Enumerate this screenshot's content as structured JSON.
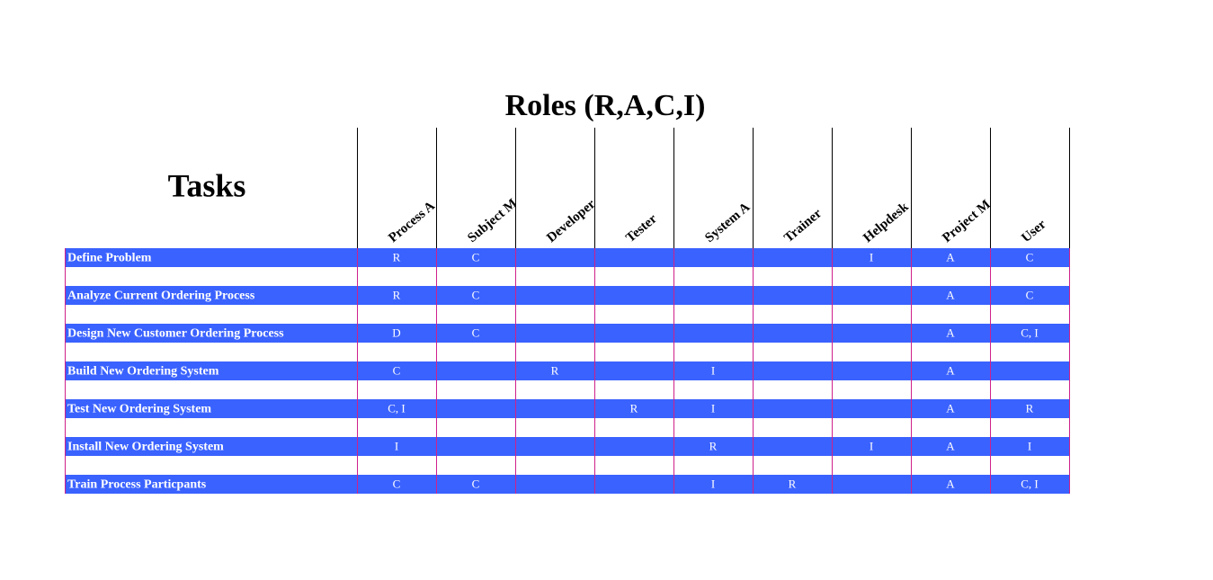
{
  "title": "Roles (R,A,C,I)",
  "tasks_header": "Tasks",
  "roles": [
    "Process A",
    "Subject M",
    "Developer",
    "Tester",
    "System A",
    "Trainer",
    "Helpdesk",
    "Project M",
    "User"
  ],
  "rows": [
    {
      "task": "Define Problem",
      "cells": [
        "R",
        "C",
        null,
        null,
        null,
        null,
        "I",
        "A",
        "C"
      ]
    },
    {
      "task": "Analyze Current Ordering Process",
      "cells": [
        "R",
        "C",
        null,
        null,
        null,
        null,
        null,
        "A",
        "C"
      ]
    },
    {
      "task": "Design New Customer Ordering Process",
      "cells": [
        "D",
        "C",
        null,
        null,
        null,
        null,
        null,
        "A",
        "C, I"
      ]
    },
    {
      "task": "Build New Ordering System",
      "cells": [
        "C",
        null,
        "R",
        null,
        "I",
        null,
        null,
        "A",
        null
      ]
    },
    {
      "task": "Test New Ordering System",
      "cells": [
        "C, I",
        null,
        null,
        "R",
        "I",
        null,
        null,
        "A",
        "R"
      ]
    },
    {
      "task": "Install New Ordering System",
      "cells": [
        "I",
        null,
        null,
        null,
        "R",
        null,
        "I",
        "A",
        "I"
      ]
    },
    {
      "task": "Train Process Particpants",
      "cells": [
        "C",
        "C",
        null,
        null,
        "I",
        "R",
        null,
        "A",
        "C, I"
      ]
    }
  ]
}
